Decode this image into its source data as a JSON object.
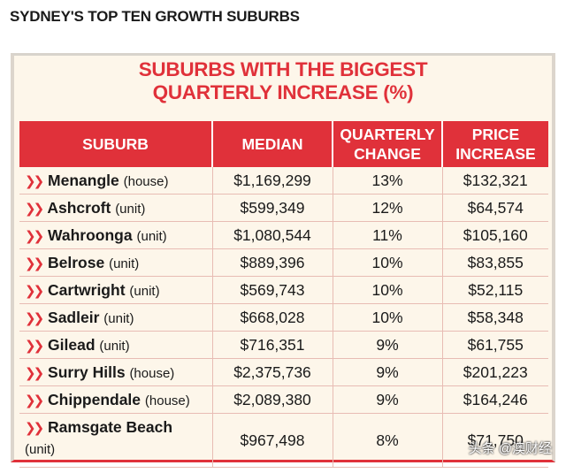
{
  "headline": "SYDNEY'S TOP TEN GROWTH SUBURBS",
  "card": {
    "title_line1": "SUBURBS WITH THE BIGGEST",
    "title_line2": "QUARTERLY INCREASE (%)"
  },
  "table": {
    "headers": [
      "SUBURB",
      "MEDIAN",
      "QUARTERLY CHANGE",
      "PRICE INCREASE"
    ],
    "rows": [
      {
        "suburb": "Menangle",
        "type": "(house)",
        "median": "$1,169,299",
        "change": "13%",
        "increase": "$132,321"
      },
      {
        "suburb": "Ashcroft",
        "type": "(unit)",
        "median": "$599,349",
        "change": "12%",
        "increase": "$64,574"
      },
      {
        "suburb": "Wahroonga",
        "type": "(unit)",
        "median": "$1,080,544",
        "change": "11%",
        "increase": "$105,160"
      },
      {
        "suburb": "Belrose",
        "type": "(unit)",
        "median": "$889,396",
        "change": "10%",
        "increase": "$83,855"
      },
      {
        "suburb": "Cartwright",
        "type": "(unit)",
        "median": "$569,743",
        "change": "10%",
        "increase": "$52,115"
      },
      {
        "suburb": "Sadleir",
        "type": "(unit)",
        "median": "$668,028",
        "change": "10%",
        "increase": "$58,348"
      },
      {
        "suburb": "Gilead",
        "type": "(unit)",
        "median": "$716,351",
        "change": "9%",
        "increase": "$61,755"
      },
      {
        "suburb": "Surry Hills",
        "type": "(house)",
        "median": "$2,375,736",
        "change": "9%",
        "increase": "$201,223"
      },
      {
        "suburb": "Chippendale",
        "type": "(house)",
        "median": "$2,089,380",
        "change": "9%",
        "increase": "$164,246"
      },
      {
        "suburb": "Ramsgate Beach",
        "type": "(unit)",
        "median": "$967,498",
        "change": "8%",
        "increase": "$71,750"
      }
    ]
  },
  "watermark": "头条 @澳财经",
  "colors": {
    "accent": "#e0313a",
    "card_bg": "#fdf6ea"
  },
  "icons": {
    "row_marker": "double-chevron-right-icon"
  }
}
